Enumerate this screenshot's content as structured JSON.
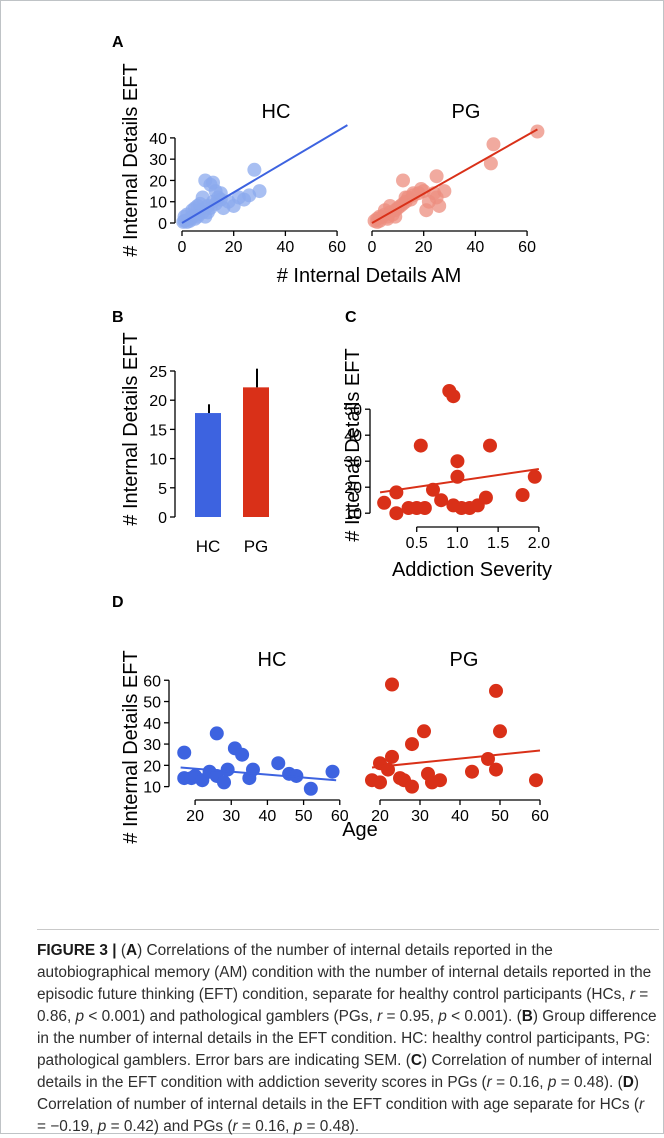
{
  "panels": {
    "A": {
      "letter": "A",
      "xlabel": "# Internal Details AM",
      "ylabel": "# Internal Details EFT"
    },
    "B": {
      "letter": "B",
      "ylabel": "# Internal Details EFT"
    },
    "C": {
      "letter": "C",
      "xlabel": "Addiction Severity",
      "ylabel": "# Internal Details EFT"
    },
    "D": {
      "letter": "D",
      "xlabel": "Age",
      "ylabel": "# Internal Details EFT"
    }
  },
  "colors": {
    "hc": "#3d63e0",
    "hc_light": "#8ba9ee",
    "pg": "#d93018",
    "pg_light": "#ec8e7f"
  },
  "chart_data": [
    {
      "panel": "A",
      "type": "scatter",
      "title": "HC",
      "xlabel": "# Internal Details AM",
      "ylabel": "# Internal Details EFT",
      "xlim": [
        0,
        65
      ],
      "ylim": [
        0,
        47
      ],
      "xticks": [
        "0",
        "20",
        "40",
        "60"
      ],
      "yticks": [
        "0",
        "10",
        "20",
        "30",
        "40"
      ],
      "points": [
        [
          1,
          1
        ],
        [
          2,
          0.5
        ],
        [
          3,
          2
        ],
        [
          4,
          3
        ],
        [
          5,
          2
        ],
        [
          6,
          4
        ],
        [
          7,
          6
        ],
        [
          8,
          5
        ],
        [
          9,
          3
        ],
        [
          10,
          8
        ],
        [
          11,
          7
        ],
        [
          12,
          10
        ],
        [
          13,
          9
        ],
        [
          14,
          12
        ],
        [
          15,
          11
        ],
        [
          16,
          7
        ],
        [
          2,
          4
        ],
        [
          4,
          6
        ],
        [
          6,
          8
        ],
        [
          5,
          7
        ],
        [
          8,
          12
        ],
        [
          9,
          20
        ],
        [
          11,
          18
        ],
        [
          12,
          19
        ],
        [
          13,
          15
        ],
        [
          3,
          1
        ],
        [
          1,
          3
        ],
        [
          0.5,
          0.5
        ],
        [
          7,
          9
        ],
        [
          10,
          5
        ],
        [
          15,
          14
        ],
        [
          18,
          10
        ],
        [
          20,
          8
        ],
        [
          22,
          12
        ],
        [
          24,
          11
        ],
        [
          26,
          13
        ],
        [
          28,
          25
        ],
        [
          30,
          15
        ],
        [
          6,
          3
        ]
      ],
      "fit": {
        "x": [
          0,
          64
        ],
        "y": [
          0,
          46
        ]
      }
    },
    {
      "panel": "A",
      "type": "scatter",
      "title": "PG",
      "xlabel": "# Internal Details AM",
      "ylabel": "# Internal Details EFT",
      "xlim": [
        0,
        65
      ],
      "ylim": [
        0,
        47
      ],
      "xticks": [
        "0",
        "20",
        "40",
        "60"
      ],
      "yticks": [
        "0",
        "10",
        "20",
        "30",
        "40"
      ],
      "points": [
        [
          1,
          1
        ],
        [
          2,
          2
        ],
        [
          3,
          1
        ],
        [
          4,
          3
        ],
        [
          5,
          4
        ],
        [
          6,
          3
        ],
        [
          7,
          5
        ],
        [
          8,
          4
        ],
        [
          9,
          6
        ],
        [
          10,
          7
        ],
        [
          11,
          8
        ],
        [
          12,
          9
        ],
        [
          13,
          10
        ],
        [
          14,
          12
        ],
        [
          15,
          11
        ],
        [
          16,
          13
        ],
        [
          18,
          14
        ],
        [
          20,
          15
        ],
        [
          22,
          10
        ],
        [
          24,
          14
        ],
        [
          26,
          8
        ],
        [
          5,
          6
        ],
        [
          7,
          8
        ],
        [
          12,
          20
        ],
        [
          25,
          22
        ],
        [
          28,
          15
        ],
        [
          46,
          28
        ],
        [
          47,
          37
        ],
        [
          64,
          43
        ],
        [
          2,
          0.5
        ],
        [
          3,
          3
        ],
        [
          6,
          2
        ],
        [
          9,
          3
        ],
        [
          13,
          12
        ],
        [
          16,
          14
        ],
        [
          19,
          16
        ],
        [
          21,
          6
        ],
        [
          25,
          12
        ]
      ],
      "fit": {
        "x": [
          0,
          64
        ],
        "y": [
          0,
          44
        ]
      }
    },
    {
      "panel": "B",
      "type": "bar",
      "ylabel": "# Internal Details EFT",
      "categories": [
        "HC",
        "PG"
      ],
      "values": [
        17.8,
        22.2
      ],
      "sem": [
        1.5,
        3.2
      ],
      "ylim": [
        0,
        25
      ],
      "yticks": [
        "0",
        "5",
        "10",
        "15",
        "20",
        "25"
      ]
    },
    {
      "panel": "C",
      "type": "scatter",
      "xlabel": "Addiction Severity",
      "ylabel": "# Internal Details EFT",
      "xlim": [
        0,
        2.1
      ],
      "ylim": [
        7,
        62
      ],
      "xticks": [
        "0.5",
        "1.0",
        "1.5",
        "2.0"
      ],
      "yticks": [
        "10",
        "20",
        "30",
        "40",
        "50"
      ],
      "points": [
        [
          0.1,
          14
        ],
        [
          0.25,
          18
        ],
        [
          0.25,
          10
        ],
        [
          0.4,
          12
        ],
        [
          0.5,
          12
        ],
        [
          0.55,
          36
        ],
        [
          0.6,
          12
        ],
        [
          0.7,
          19
        ],
        [
          0.8,
          15
        ],
        [
          0.9,
          57
        ],
        [
          0.95,
          55
        ],
        [
          0.95,
          13
        ],
        [
          1.0,
          30
        ],
        [
          1.0,
          24
        ],
        [
          1.05,
          12
        ],
        [
          1.15,
          12
        ],
        [
          1.25,
          13
        ],
        [
          1.35,
          16
        ],
        [
          1.4,
          36
        ],
        [
          1.8,
          17
        ],
        [
          1.95,
          24
        ]
      ],
      "fit": {
        "x": [
          0.05,
          2.0
        ],
        "y": [
          18,
          27
        ]
      }
    },
    {
      "panel": "D",
      "type": "scatter",
      "title": "HC",
      "xlabel": "Age",
      "ylabel": "# Internal Details EFT",
      "xlim": [
        15,
        62
      ],
      "ylim": [
        7,
        62
      ],
      "xticks": [
        "20",
        "30",
        "40",
        "50",
        "60"
      ],
      "yticks": [
        "10",
        "20",
        "30",
        "40",
        "50",
        "60"
      ],
      "points": [
        [
          17,
          26
        ],
        [
          17,
          14
        ],
        [
          19,
          14
        ],
        [
          20,
          15
        ],
        [
          22,
          13
        ],
        [
          24,
          17
        ],
        [
          26,
          35
        ],
        [
          26,
          15
        ],
        [
          28,
          12
        ],
        [
          29,
          18
        ],
        [
          31,
          28
        ],
        [
          33,
          25
        ],
        [
          35,
          14
        ],
        [
          36,
          18
        ],
        [
          43,
          21
        ],
        [
          46,
          16
        ],
        [
          48,
          15
        ],
        [
          52,
          9
        ],
        [
          58,
          17
        ]
      ],
      "fit": {
        "x": [
          16,
          59
        ],
        "y": [
          19,
          13
        ]
      }
    },
    {
      "panel": "D",
      "type": "scatter",
      "title": "PG",
      "xlabel": "Age",
      "ylabel": "# Internal Details EFT",
      "xlim": [
        15,
        62
      ],
      "ylim": [
        7,
        62
      ],
      "xticks": [
        "20",
        "30",
        "40",
        "50",
        "60"
      ],
      "yticks": [
        "10",
        "20",
        "30",
        "40",
        "50",
        "60"
      ],
      "points": [
        [
          18,
          13
        ],
        [
          20,
          21
        ],
        [
          20,
          12
        ],
        [
          22,
          18
        ],
        [
          23,
          58
        ],
        [
          23,
          24
        ],
        [
          25,
          14
        ],
        [
          26,
          13
        ],
        [
          28,
          30
        ],
        [
          28,
          10
        ],
        [
          31,
          36
        ],
        [
          32,
          16
        ],
        [
          33,
          12
        ],
        [
          35,
          13
        ],
        [
          43,
          17
        ],
        [
          47,
          23
        ],
        [
          49,
          55
        ],
        [
          50,
          36
        ],
        [
          49,
          18
        ],
        [
          59,
          13
        ]
      ],
      "fit": {
        "x": [
          18,
          60
        ],
        "y": [
          19,
          27
        ]
      }
    }
  ],
  "caption": {
    "label": "FIGURE 3 |",
    "parts": [
      {
        "t": " (",
        "b": false
      },
      {
        "t": "A",
        "b": true
      },
      {
        "t": ") Correlations of the number of internal details reported in the autobiographical memory (AM) condition with the number of internal details reported in the episodic future thinking (EFT) condition, separate for healthy control participants (HCs, ",
        "b": false
      },
      {
        "t": "r",
        "i": true
      },
      {
        "t": " = 0.86, ",
        "b": false
      },
      {
        "t": "p",
        "i": true
      },
      {
        "t": " < 0.001) and pathological gamblers (PGs, ",
        "b": false
      },
      {
        "t": "r",
        "i": true
      },
      {
        "t": " = 0.95, ",
        "b": false
      },
      {
        "t": "p",
        "i": true
      },
      {
        "t": " < 0.001). (",
        "b": false
      },
      {
        "t": "B",
        "b": true
      },
      {
        "t": ") Group difference in the number of internal details in the EFT condition. HC: healthy control participants, PG: pathological gamblers. Error bars are indicating SEM. (",
        "b": false
      },
      {
        "t": "C",
        "b": true
      },
      {
        "t": ") Correlation of number of internal details in the EFT condition with addiction severity scores in PGs (",
        "b": false
      },
      {
        "t": "r",
        "i": true
      },
      {
        "t": " = 0.16, ",
        "b": false
      },
      {
        "t": "p",
        "i": true
      },
      {
        "t": " = 0.48). (",
        "b": false
      },
      {
        "t": "D",
        "b": true
      },
      {
        "t": ") Correlation of number of internal details in the EFT condition with age separate for HCs (",
        "b": false
      },
      {
        "t": "r",
        "i": true
      },
      {
        "t": " = −0.19, ",
        "b": false
      },
      {
        "t": "p",
        "i": true
      },
      {
        "t": " = 0.42) and PGs (",
        "b": false
      },
      {
        "t": "r",
        "i": true
      },
      {
        "t": " = 0.16, ",
        "b": false
      },
      {
        "t": "p",
        "i": true
      },
      {
        "t": " = 0.48).",
        "b": false
      }
    ]
  }
}
